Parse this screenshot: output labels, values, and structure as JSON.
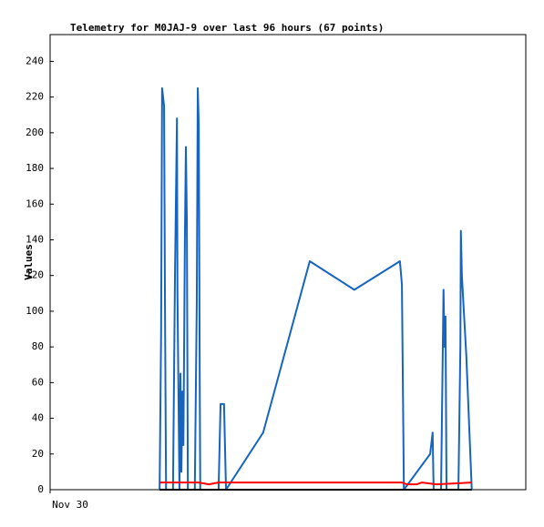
{
  "chart_data": {
    "type": "line",
    "title": "Telemetry for M0JAJ-9 over last 96 hours (67 points)",
    "y_label": "Values",
    "xlim": [
      0,
      96
    ],
    "xticks": [
      {
        "value": 0,
        "label": "Nov 30"
      }
    ],
    "ylim": [
      0,
      255
    ],
    "yticks": [
      0,
      20,
      40,
      60,
      80,
      100,
      120,
      140,
      160,
      180,
      200,
      220,
      240
    ],
    "grid": false,
    "series": [
      {
        "color": "#1565c0",
        "x": [
          22.1,
          22.4,
          22.6,
          23.0,
          23.2,
          23.4,
          24.8,
          25.2,
          25.6,
          25.7,
          26.1,
          26.3,
          26.5,
          26.7,
          26.9,
          27.2,
          27.4,
          27.6,
          27.8,
          29.2,
          29.6,
          29.8,
          30.0,
          30.2,
          30.3,
          34.0,
          34.4,
          35.1,
          35.5,
          43.0,
          52.4,
          61.4,
          70.6,
          71.0,
          71.4,
          76.7,
          77.2,
          77.4,
          78.9,
          79.4,
          79.6,
          79.8,
          80.0,
          82.4,
          82.8,
          82.9,
          83.1,
          84.0,
          85.1
        ],
        "values": [
          0,
          88,
          225,
          215,
          95,
          0,
          0,
          120,
          208,
          110,
          0,
          65,
          10,
          55,
          25,
          140,
          192,
          150,
          0,
          0,
          105,
          225,
          205,
          60,
          0,
          0,
          48,
          48,
          0,
          32,
          128,
          112,
          128,
          115,
          0,
          20,
          32,
          0,
          0,
          112,
          80,
          97,
          0,
          0,
          80,
          145,
          120,
          75,
          0
        ]
      },
      {
        "color": "#ff0000",
        "x": [
          22.1,
          30.0,
          32.0,
          34.0,
          71.0,
          72.0,
          74.0,
          75.0,
          78.0,
          85.1
        ],
        "values": [
          4,
          4,
          3,
          4,
          4,
          3,
          3,
          4,
          3,
          4
        ]
      },
      {
        "color": "#000000",
        "x": [
          22.1,
          85.1
        ],
        "values": [
          0,
          0
        ]
      }
    ]
  }
}
